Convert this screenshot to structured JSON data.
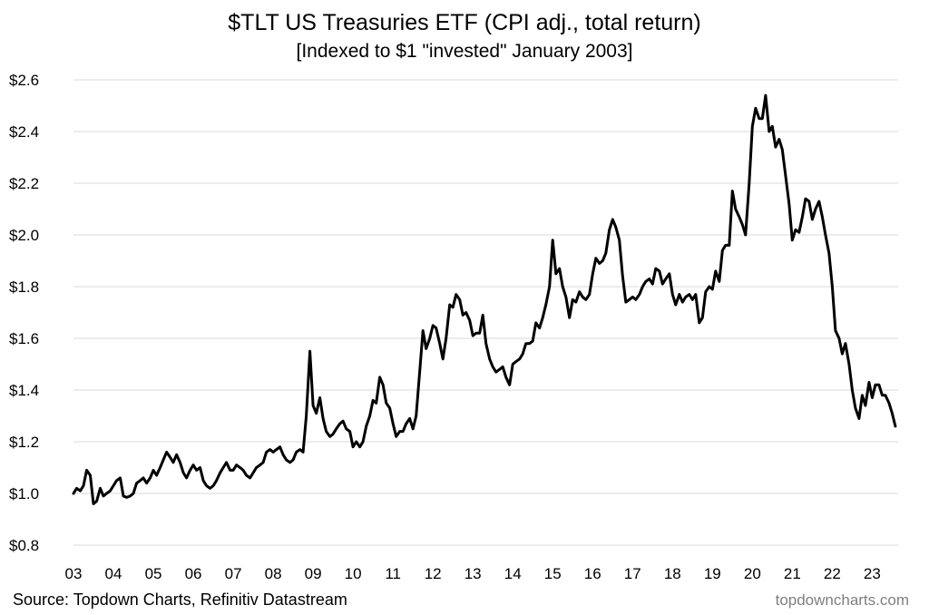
{
  "chart_data": {
    "type": "line",
    "title": "$TLT US Treasuries ETF (CPI adj., total return)",
    "subtitle": "[Indexed to $1 \"invested\" January 2003]",
    "ylim": [
      0.8,
      2.6
    ],
    "y_ticks": [
      0.8,
      1.0,
      1.2,
      1.4,
      1.6,
      1.8,
      2.0,
      2.2,
      2.4,
      2.6
    ],
    "y_tick_labels": [
      "$0.8",
      "$1.0",
      "$1.2",
      "$1.4",
      "$1.6",
      "$1.8",
      "$2.0",
      "$2.2",
      "$2.4",
      "$2.6"
    ],
    "x_range": [
      2003.0,
      2023.65
    ],
    "x_ticks": [
      2003,
      2004,
      2005,
      2006,
      2007,
      2008,
      2009,
      2010,
      2011,
      2012,
      2013,
      2014,
      2015,
      2016,
      2017,
      2018,
      2019,
      2020,
      2021,
      2022,
      2023
    ],
    "x_tick_labels": [
      "03",
      "04",
      "05",
      "06",
      "07",
      "08",
      "09",
      "10",
      "11",
      "12",
      "13",
      "14",
      "15",
      "16",
      "17",
      "18",
      "19",
      "20",
      "21",
      "22",
      "23"
    ],
    "grid": "horizontal",
    "line_color": "#000000",
    "series": [
      {
        "points": [
          [
            2003.0,
            1.0
          ],
          [
            2003.08,
            1.02
          ],
          [
            2003.17,
            1.01
          ],
          [
            2003.25,
            1.03
          ],
          [
            2003.33,
            1.09
          ],
          [
            2003.42,
            1.07
          ],
          [
            2003.5,
            0.96
          ],
          [
            2003.58,
            0.97
          ],
          [
            2003.67,
            1.02
          ],
          [
            2003.75,
            0.99
          ],
          [
            2003.83,
            1.0
          ],
          [
            2003.92,
            1.01
          ],
          [
            2004.0,
            1.03
          ],
          [
            2004.08,
            1.05
          ],
          [
            2004.17,
            1.06
          ],
          [
            2004.25,
            0.99
          ],
          [
            2004.33,
            0.985
          ],
          [
            2004.42,
            0.99
          ],
          [
            2004.5,
            1.0
          ],
          [
            2004.58,
            1.04
          ],
          [
            2004.67,
            1.05
          ],
          [
            2004.75,
            1.06
          ],
          [
            2004.83,
            1.04
          ],
          [
            2004.92,
            1.06
          ],
          [
            2005.0,
            1.09
          ],
          [
            2005.08,
            1.07
          ],
          [
            2005.17,
            1.1
          ],
          [
            2005.25,
            1.13
          ],
          [
            2005.33,
            1.16
          ],
          [
            2005.42,
            1.14
          ],
          [
            2005.5,
            1.12
          ],
          [
            2005.58,
            1.15
          ],
          [
            2005.67,
            1.12
          ],
          [
            2005.75,
            1.08
          ],
          [
            2005.83,
            1.06
          ],
          [
            2005.92,
            1.09
          ],
          [
            2006.0,
            1.11
          ],
          [
            2006.08,
            1.09
          ],
          [
            2006.17,
            1.1
          ],
          [
            2006.25,
            1.05
          ],
          [
            2006.33,
            1.03
          ],
          [
            2006.42,
            1.02
          ],
          [
            2006.5,
            1.03
          ],
          [
            2006.58,
            1.05
          ],
          [
            2006.67,
            1.08
          ],
          [
            2006.75,
            1.1
          ],
          [
            2006.83,
            1.12
          ],
          [
            2006.92,
            1.09
          ],
          [
            2007.0,
            1.09
          ],
          [
            2007.08,
            1.11
          ],
          [
            2007.17,
            1.1
          ],
          [
            2007.25,
            1.09
          ],
          [
            2007.33,
            1.07
          ],
          [
            2007.42,
            1.06
          ],
          [
            2007.5,
            1.08
          ],
          [
            2007.58,
            1.1
          ],
          [
            2007.67,
            1.11
          ],
          [
            2007.75,
            1.12
          ],
          [
            2007.83,
            1.16
          ],
          [
            2007.92,
            1.17
          ],
          [
            2008.0,
            1.16
          ],
          [
            2008.08,
            1.17
          ],
          [
            2008.17,
            1.18
          ],
          [
            2008.25,
            1.15
          ],
          [
            2008.33,
            1.13
          ],
          [
            2008.42,
            1.12
          ],
          [
            2008.5,
            1.13
          ],
          [
            2008.58,
            1.16
          ],
          [
            2008.67,
            1.17
          ],
          [
            2008.75,
            1.16
          ],
          [
            2008.83,
            1.3
          ],
          [
            2008.92,
            1.55
          ],
          [
            2009.0,
            1.34
          ],
          [
            2009.08,
            1.31
          ],
          [
            2009.17,
            1.37
          ],
          [
            2009.25,
            1.29
          ],
          [
            2009.33,
            1.24
          ],
          [
            2009.42,
            1.22
          ],
          [
            2009.5,
            1.23
          ],
          [
            2009.58,
            1.25
          ],
          [
            2009.67,
            1.27
          ],
          [
            2009.75,
            1.28
          ],
          [
            2009.83,
            1.25
          ],
          [
            2009.92,
            1.24
          ],
          [
            2010.0,
            1.18
          ],
          [
            2010.08,
            1.2
          ],
          [
            2010.17,
            1.18
          ],
          [
            2010.25,
            1.2
          ],
          [
            2010.33,
            1.26
          ],
          [
            2010.42,
            1.3
          ],
          [
            2010.5,
            1.36
          ],
          [
            2010.58,
            1.35
          ],
          [
            2010.67,
            1.45
          ],
          [
            2010.75,
            1.42
          ],
          [
            2010.83,
            1.35
          ],
          [
            2010.92,
            1.33
          ],
          [
            2011.0,
            1.27
          ],
          [
            2011.08,
            1.22
          ],
          [
            2011.17,
            1.24
          ],
          [
            2011.25,
            1.24
          ],
          [
            2011.33,
            1.27
          ],
          [
            2011.42,
            1.29
          ],
          [
            2011.5,
            1.25
          ],
          [
            2011.58,
            1.3
          ],
          [
            2011.67,
            1.47
          ],
          [
            2011.75,
            1.63
          ],
          [
            2011.83,
            1.56
          ],
          [
            2011.92,
            1.6
          ],
          [
            2012.0,
            1.65
          ],
          [
            2012.08,
            1.64
          ],
          [
            2012.17,
            1.58
          ],
          [
            2012.25,
            1.52
          ],
          [
            2012.33,
            1.6
          ],
          [
            2012.42,
            1.73
          ],
          [
            2012.5,
            1.72
          ],
          [
            2012.58,
            1.77
          ],
          [
            2012.67,
            1.75
          ],
          [
            2012.75,
            1.69
          ],
          [
            2012.83,
            1.7
          ],
          [
            2012.92,
            1.67
          ],
          [
            2013.0,
            1.61
          ],
          [
            2013.08,
            1.62
          ],
          [
            2013.17,
            1.62
          ],
          [
            2013.25,
            1.69
          ],
          [
            2013.33,
            1.58
          ],
          [
            2013.42,
            1.52
          ],
          [
            2013.5,
            1.49
          ],
          [
            2013.58,
            1.47
          ],
          [
            2013.67,
            1.48
          ],
          [
            2013.75,
            1.49
          ],
          [
            2013.83,
            1.45
          ],
          [
            2013.92,
            1.42
          ],
          [
            2014.0,
            1.5
          ],
          [
            2014.08,
            1.51
          ],
          [
            2014.17,
            1.52
          ],
          [
            2014.25,
            1.54
          ],
          [
            2014.33,
            1.58
          ],
          [
            2014.42,
            1.58
          ],
          [
            2014.5,
            1.59
          ],
          [
            2014.58,
            1.66
          ],
          [
            2014.67,
            1.64
          ],
          [
            2014.75,
            1.68
          ],
          [
            2014.83,
            1.73
          ],
          [
            2014.92,
            1.8
          ],
          [
            2015.0,
            1.98
          ],
          [
            2015.08,
            1.85
          ],
          [
            2015.17,
            1.87
          ],
          [
            2015.25,
            1.8
          ],
          [
            2015.33,
            1.76
          ],
          [
            2015.42,
            1.68
          ],
          [
            2015.5,
            1.75
          ],
          [
            2015.58,
            1.74
          ],
          [
            2015.67,
            1.78
          ],
          [
            2015.75,
            1.76
          ],
          [
            2015.83,
            1.75
          ],
          [
            2015.92,
            1.77
          ],
          [
            2016.0,
            1.85
          ],
          [
            2016.08,
            1.91
          ],
          [
            2016.17,
            1.89
          ],
          [
            2016.25,
            1.9
          ],
          [
            2016.33,
            1.93
          ],
          [
            2016.42,
            2.02
          ],
          [
            2016.5,
            2.06
          ],
          [
            2016.58,
            2.03
          ],
          [
            2016.67,
            1.98
          ],
          [
            2016.75,
            1.84
          ],
          [
            2016.83,
            1.74
          ],
          [
            2016.92,
            1.75
          ],
          [
            2017.0,
            1.76
          ],
          [
            2017.08,
            1.75
          ],
          [
            2017.17,
            1.77
          ],
          [
            2017.25,
            1.8
          ],
          [
            2017.33,
            1.82
          ],
          [
            2017.42,
            1.83
          ],
          [
            2017.5,
            1.81
          ],
          [
            2017.58,
            1.87
          ],
          [
            2017.67,
            1.86
          ],
          [
            2017.75,
            1.81
          ],
          [
            2017.83,
            1.83
          ],
          [
            2017.92,
            1.85
          ],
          [
            2018.0,
            1.77
          ],
          [
            2018.08,
            1.73
          ],
          [
            2018.17,
            1.77
          ],
          [
            2018.25,
            1.74
          ],
          [
            2018.33,
            1.76
          ],
          [
            2018.42,
            1.77
          ],
          [
            2018.5,
            1.75
          ],
          [
            2018.58,
            1.77
          ],
          [
            2018.67,
            1.66
          ],
          [
            2018.75,
            1.68
          ],
          [
            2018.83,
            1.78
          ],
          [
            2018.92,
            1.8
          ],
          [
            2019.0,
            1.79
          ],
          [
            2019.08,
            1.86
          ],
          [
            2019.17,
            1.82
          ],
          [
            2019.25,
            1.94
          ],
          [
            2019.33,
            1.96
          ],
          [
            2019.42,
            1.96
          ],
          [
            2019.5,
            2.17
          ],
          [
            2019.58,
            2.1
          ],
          [
            2019.67,
            2.07
          ],
          [
            2019.75,
            2.04
          ],
          [
            2019.83,
            2.0
          ],
          [
            2019.92,
            2.2
          ],
          [
            2020.0,
            2.42
          ],
          [
            2020.08,
            2.49
          ],
          [
            2020.17,
            2.45
          ],
          [
            2020.25,
            2.45
          ],
          [
            2020.33,
            2.54
          ],
          [
            2020.42,
            2.4
          ],
          [
            2020.5,
            2.42
          ],
          [
            2020.58,
            2.34
          ],
          [
            2020.67,
            2.37
          ],
          [
            2020.75,
            2.33
          ],
          [
            2020.83,
            2.23
          ],
          [
            2020.92,
            2.12
          ],
          [
            2021.0,
            1.98
          ],
          [
            2021.08,
            2.02
          ],
          [
            2021.17,
            2.01
          ],
          [
            2021.25,
            2.07
          ],
          [
            2021.33,
            2.14
          ],
          [
            2021.42,
            2.13
          ],
          [
            2021.5,
            2.06
          ],
          [
            2021.58,
            2.1
          ],
          [
            2021.67,
            2.13
          ],
          [
            2021.75,
            2.07
          ],
          [
            2021.83,
            2.0
          ],
          [
            2021.92,
            1.93
          ],
          [
            2022.0,
            1.8
          ],
          [
            2022.08,
            1.63
          ],
          [
            2022.17,
            1.6
          ],
          [
            2022.25,
            1.54
          ],
          [
            2022.33,
            1.58
          ],
          [
            2022.42,
            1.5
          ],
          [
            2022.5,
            1.4
          ],
          [
            2022.58,
            1.33
          ],
          [
            2022.67,
            1.29
          ],
          [
            2022.75,
            1.38
          ],
          [
            2022.83,
            1.34
          ],
          [
            2022.92,
            1.43
          ],
          [
            2023.0,
            1.37
          ],
          [
            2023.08,
            1.42
          ],
          [
            2023.17,
            1.42
          ],
          [
            2023.25,
            1.38
          ],
          [
            2023.33,
            1.38
          ],
          [
            2023.42,
            1.35
          ],
          [
            2023.5,
            1.31
          ],
          [
            2023.58,
            1.26
          ]
        ]
      }
    ]
  },
  "footer": {
    "source": "Source: Topdown Charts, Refinitiv Datastream",
    "watermark": "topdowncharts.com"
  }
}
